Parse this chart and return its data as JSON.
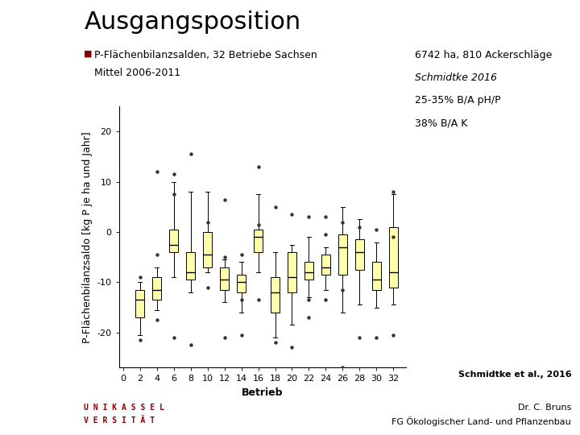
{
  "title": "Ausgangsposition",
  "bullet_text": "P-Flächenbilanzsalden, 32 Betriebe Sachsen",
  "subtitle": "Mittel 2006-2011",
  "annotation_line1": "6742 ha, 810 Ackerschläge",
  "annotation_line2": "Schmidtke 2016",
  "annotation_line3": "25-35% B/A pH/P",
  "annotation_line4": "38% B/A K",
  "xlabel": "Betrieb",
  "ylabel": "P-Flächenbilanzsaldo [kg P je ha und Jahr]",
  "source_text": "Schmidtke et al., 2016",
  "footer_right": "Dr. C. Bruns\nFG Ökologischer Land- und Pflanzenbau",
  "footer_left_line1": "U N I K A S S E L",
  "footer_left_line2": "V E R S I T Ä T",
  "positions": [
    2,
    4,
    6,
    8,
    10,
    12,
    14,
    16,
    18,
    20,
    22,
    24,
    26,
    28,
    30,
    32
  ],
  "box_data": [
    {
      "whislo": -20.5,
      "q1": -17.0,
      "med": -13.5,
      "q3": -11.5,
      "whishi": -10.0,
      "fliers": [
        -21.5,
        -9.0
      ]
    },
    {
      "whislo": -15.5,
      "q1": -13.5,
      "med": -11.5,
      "q3": -9.0,
      "whishi": -7.0,
      "fliers": [
        -17.5,
        -4.5,
        12.0
      ]
    },
    {
      "whislo": -9.0,
      "q1": -4.0,
      "med": -2.5,
      "q3": 0.5,
      "whishi": 10.0,
      "fliers": [
        -21.0,
        7.5,
        11.5
      ]
    },
    {
      "whislo": -12.0,
      "q1": -9.5,
      "med": -8.0,
      "q3": -4.0,
      "whishi": 8.0,
      "fliers": [
        -22.5,
        15.5
      ]
    },
    {
      "whislo": -8.0,
      "q1": -7.0,
      "med": -4.5,
      "q3": 0.0,
      "whishi": 8.0,
      "fliers": [
        -11.0,
        2.0
      ]
    },
    {
      "whislo": -14.0,
      "q1": -11.5,
      "med": -9.5,
      "q3": -7.0,
      "whishi": -5.5,
      "fliers": [
        -21.0,
        -5.0,
        6.5
      ]
    },
    {
      "whislo": -16.0,
      "q1": -12.0,
      "med": -10.0,
      "q3": -8.5,
      "whishi": -6.0,
      "fliers": [
        -20.5,
        -13.5,
        -4.5
      ]
    },
    {
      "whislo": -8.0,
      "q1": -4.0,
      "med": -1.0,
      "q3": 0.5,
      "whishi": 7.5,
      "fliers": [
        -13.5,
        1.5,
        13.0
      ]
    },
    {
      "whislo": -21.0,
      "q1": -16.0,
      "med": -12.0,
      "q3": -9.0,
      "whishi": -4.0,
      "fliers": [
        -22.0,
        5.0
      ]
    },
    {
      "whislo": -18.5,
      "q1": -12.0,
      "med": -9.0,
      "q3": -4.0,
      "whishi": -2.5,
      "fliers": [
        -23.0,
        3.5
      ]
    },
    {
      "whislo": -13.0,
      "q1": -9.5,
      "med": -8.0,
      "q3": -6.0,
      "whishi": -1.0,
      "fliers": [
        -17.0,
        -13.5,
        3.0
      ]
    },
    {
      "whislo": -11.5,
      "q1": -8.5,
      "med": -7.0,
      "q3": -4.5,
      "whishi": -3.0,
      "fliers": [
        -13.5,
        -0.5,
        3.0
      ]
    },
    {
      "whislo": -16.0,
      "q1": -8.5,
      "med": -3.0,
      "q3": -0.5,
      "whishi": 5.0,
      "fliers": [
        -27.0,
        -11.5,
        2.0
      ]
    },
    {
      "whislo": -14.5,
      "q1": -7.5,
      "med": -4.0,
      "q3": -1.5,
      "whishi": 2.5,
      "fliers": [
        -21.0,
        1.0
      ]
    },
    {
      "whislo": -15.0,
      "q1": -11.5,
      "med": -9.5,
      "q3": -6.0,
      "whishi": -2.0,
      "fliers": [
        -21.0,
        0.5
      ]
    },
    {
      "whislo": -14.5,
      "q1": -11.0,
      "med": -8.0,
      "q3": 1.0,
      "whishi": 7.5,
      "fliers": [
        -20.5,
        -1.0,
        8.0
      ]
    }
  ],
  "box_color": "#FFFFAA",
  "box_edge_color": "#000000",
  "median_color": "#000000",
  "whisker_color": "#000000",
  "flier_color": "#333333",
  "background_color": "#ffffff",
  "slide_bg": "#f0f0f0",
  "green_strip_color": "#c8d87a",
  "ylim": [
    -27,
    25
  ],
  "yticks": [
    -20,
    -10,
    0,
    10,
    20
  ],
  "xticks": [
    0,
    2,
    4,
    6,
    8,
    10,
    12,
    14,
    16,
    18,
    20,
    22,
    24,
    26,
    28,
    30,
    32
  ],
  "title_fontsize": 22,
  "bullet_fontsize": 9,
  "subtitle_fontsize": 9,
  "label_fontsize": 9,
  "tick_fontsize": 8,
  "annotation_fontsize": 9,
  "source_fontsize": 8,
  "footer_fontsize": 7
}
